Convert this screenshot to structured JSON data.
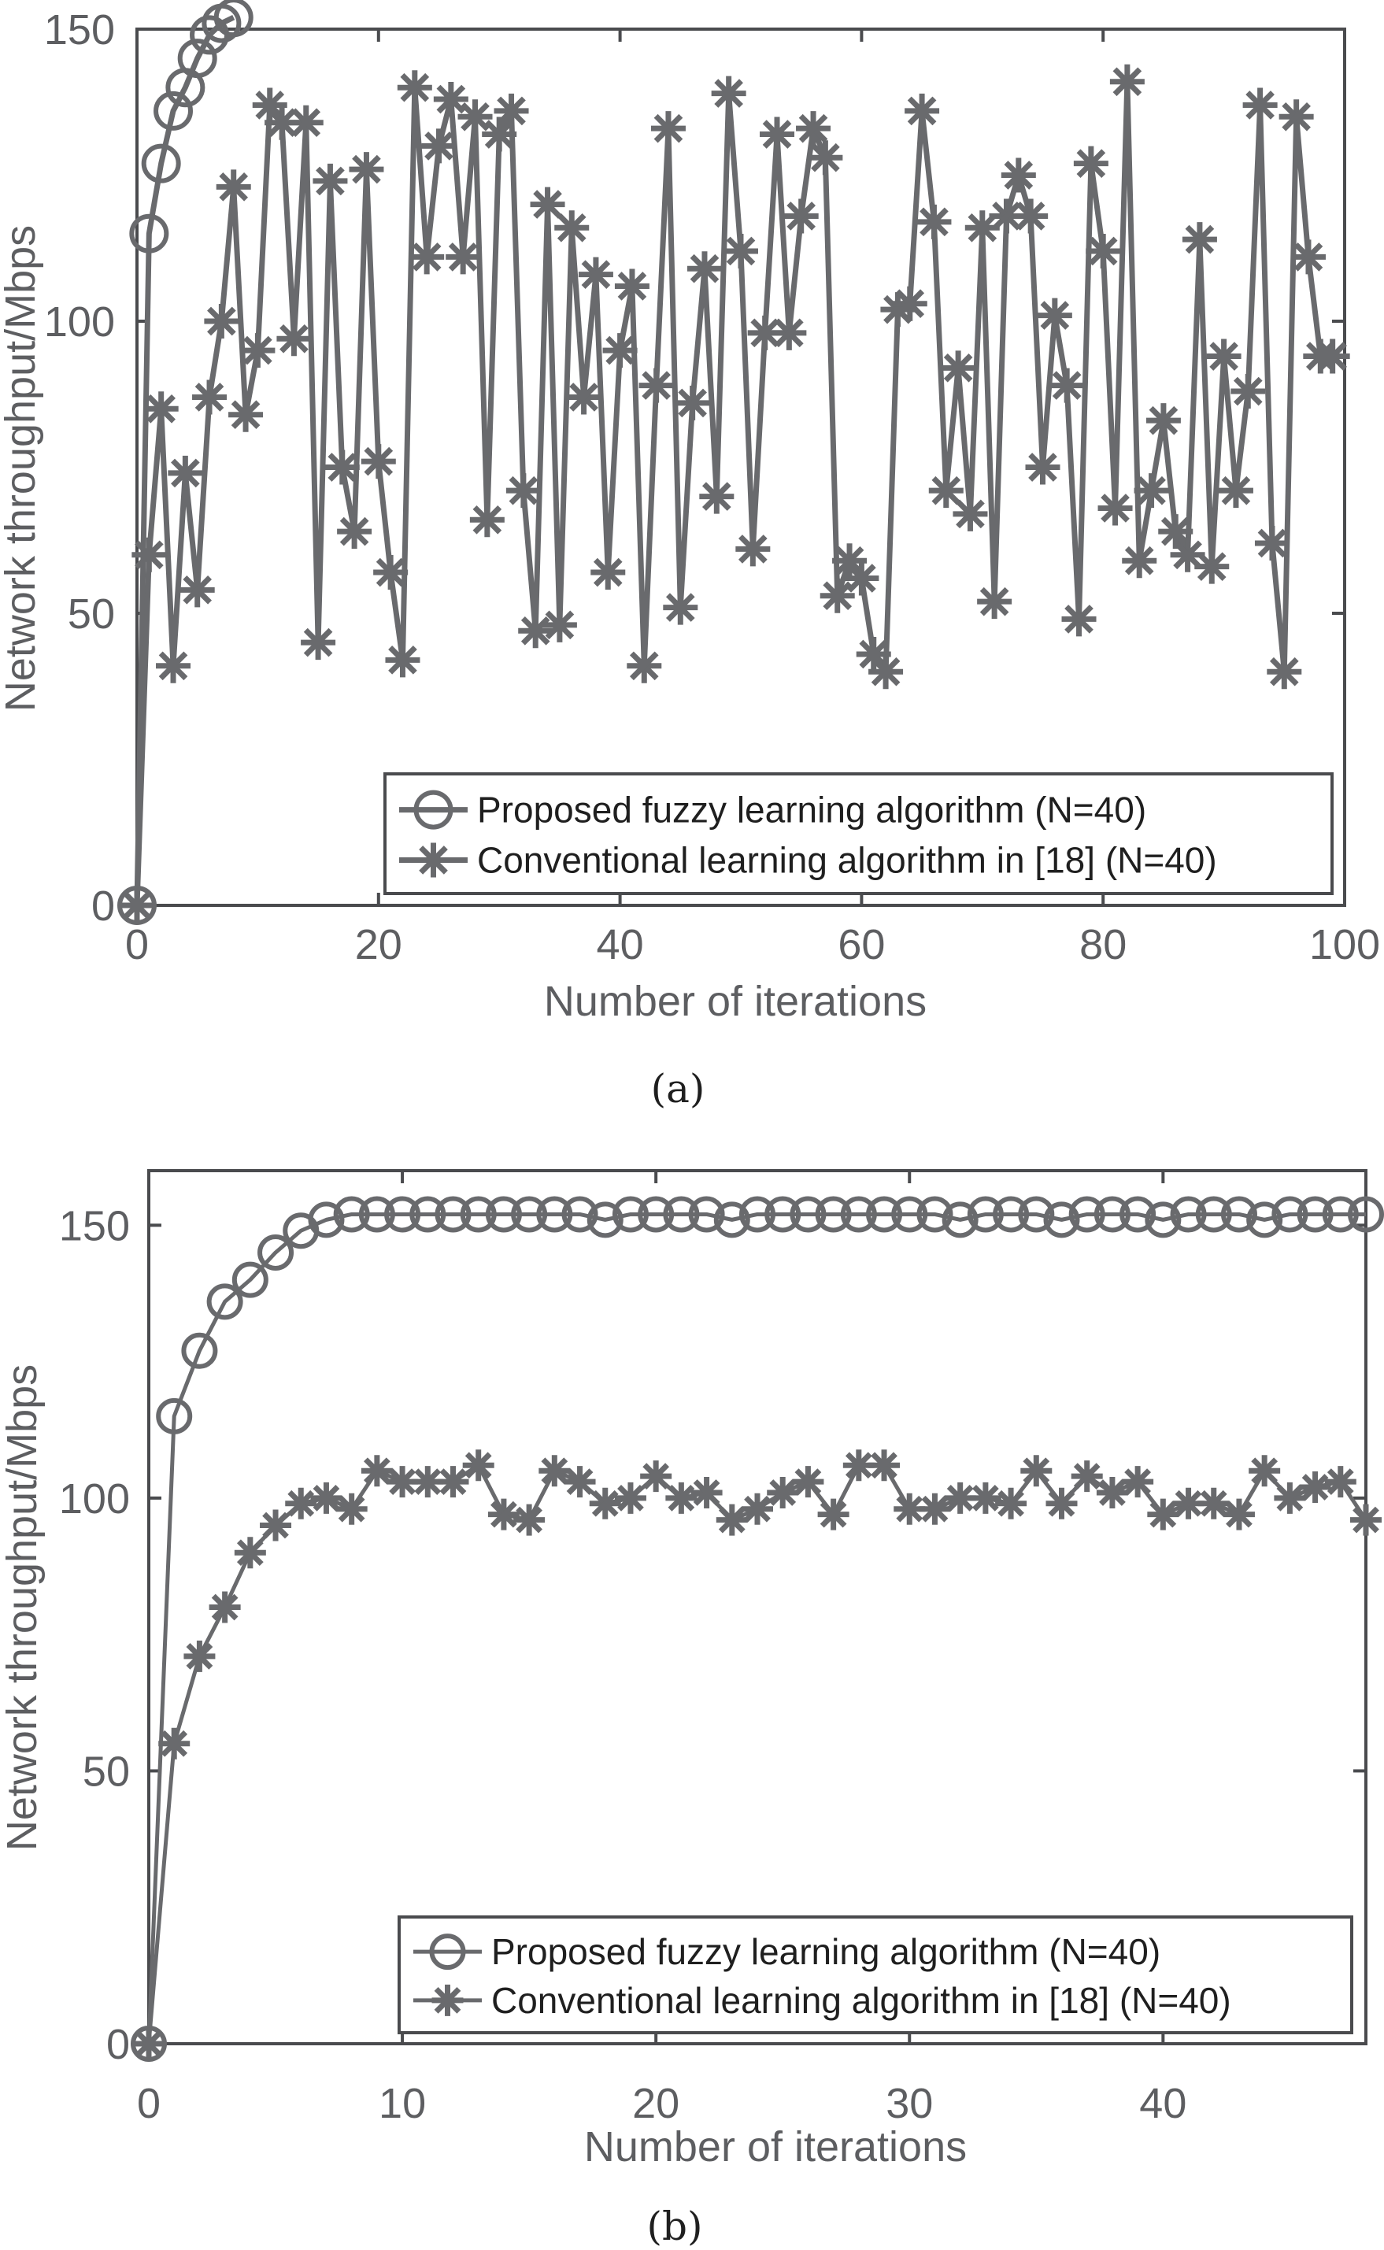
{
  "colors": {
    "series": "#696a6d",
    "axis": "#4a4b4e"
  },
  "chart_data": [
    {
      "type": "line",
      "caption": "(a)",
      "xlabel": "Number of iterations",
      "ylabel": "Network throughput/Mbps",
      "xlim": [
        0,
        100
      ],
      "ylim": [
        0,
        150
      ],
      "xticks": [
        0,
        20,
        40,
        60,
        80,
        100
      ],
      "yticks": [
        0,
        50,
        100,
        150
      ],
      "grid": false,
      "legend_position": "bottom-right",
      "series": [
        {
          "name": "Proposed fuzzy learning algorithm (N=40)",
          "marker": "circle",
          "x": [
            0,
            1,
            2,
            3,
            4,
            5,
            6,
            7,
            8
          ],
          "y": [
            0,
            115,
            127,
            136,
            140,
            145,
            149,
            151,
            152
          ]
        },
        {
          "name": "Conventional learning algorithm in [18] (N=40)",
          "marker": "asterisk",
          "x": [
            0,
            1,
            2,
            3,
            4,
            5,
            6,
            7,
            8,
            9,
            10,
            11,
            12,
            13,
            14,
            15,
            16,
            17,
            18,
            19,
            20,
            21,
            22,
            23,
            24,
            25,
            26,
            27,
            28,
            29,
            30,
            31,
            32,
            33,
            34,
            35,
            36,
            37,
            38,
            39,
            40,
            41,
            42,
            43,
            44,
            45,
            46,
            47,
            48,
            49,
            50,
            51,
            52,
            53,
            54,
            55,
            56,
            57,
            58,
            59,
            60,
            61,
            62,
            63,
            64,
            65,
            66,
            67,
            68,
            69,
            70,
            71,
            72,
            73,
            74,
            75,
            76,
            77,
            78,
            79,
            80,
            81,
            82,
            83,
            84,
            85,
            86,
            87,
            88,
            89,
            90,
            91,
            92,
            93,
            94,
            95,
            96,
            97,
            98,
            99
          ],
          "y": [
            0,
            60,
            85,
            41,
            74,
            54,
            87,
            100,
            123,
            84,
            95,
            137,
            134,
            97,
            134,
            45,
            124,
            75,
            64,
            126,
            76,
            57,
            42,
            140,
            111,
            130,
            138,
            111,
            135,
            66,
            132,
            136,
            71,
            47,
            120,
            48,
            116,
            87,
            108,
            57,
            95,
            106,
            41,
            89,
            133,
            51,
            86,
            109,
            70,
            139,
            112,
            61,
            98,
            132,
            98,
            118,
            133,
            128,
            53,
            59,
            56,
            43,
            40,
            102,
            103,
            136,
            117,
            71,
            92,
            67,
            116,
            52,
            118,
            125,
            118,
            75,
            101,
            89,
            49,
            127,
            112,
            68,
            141,
            59,
            71,
            83,
            64,
            60,
            114,
            58,
            94,
            71,
            88,
            137,
            62,
            40,
            135,
            111,
            94,
            94
          ]
        }
      ]
    },
    {
      "type": "line",
      "caption": "(b)",
      "xlabel": "Number of iterations",
      "ylabel": "Network throughput/Mbps",
      "xlim": [
        0,
        48
      ],
      "ylim": [
        0,
        160
      ],
      "xticks": [
        0,
        10,
        20,
        30,
        40
      ],
      "yticks": [
        0,
        50,
        100,
        150
      ],
      "grid": false,
      "legend_position": "bottom-right",
      "series": [
        {
          "name": "Proposed fuzzy learning algorithm (N=40)",
          "marker": "circle",
          "x": [
            0,
            1,
            2,
            3,
            4,
            5,
            6,
            7,
            8,
            9,
            10,
            11,
            12,
            13,
            14,
            15,
            16,
            17,
            18,
            19,
            20,
            21,
            22,
            23,
            24,
            25,
            26,
            27,
            28,
            29,
            30,
            31,
            32,
            33,
            34,
            35,
            36,
            37,
            38,
            39,
            40,
            41,
            42,
            43,
            44,
            45,
            46,
            47,
            48
          ],
          "y": [
            0,
            115,
            127,
            136,
            140,
            145,
            149,
            151,
            152,
            152,
            152,
            152,
            152,
            152,
            152,
            152,
            152,
            152,
            151,
            152,
            152,
            152,
            152,
            151,
            152,
            152,
            152,
            152,
            152,
            152,
            152,
            152,
            151,
            152,
            152,
            152,
            151,
            152,
            152,
            152,
            151,
            152,
            152,
            152,
            151,
            152,
            152,
            152,
            152
          ]
        },
        {
          "name": "Conventional learning algorithm in [18] (N=40)",
          "marker": "asterisk",
          "x": [
            0,
            1,
            2,
            3,
            4,
            5,
            6,
            7,
            8,
            9,
            10,
            11,
            12,
            13,
            14,
            15,
            16,
            17,
            18,
            19,
            20,
            21,
            22,
            23,
            24,
            25,
            26,
            27,
            28,
            29,
            30,
            31,
            32,
            33,
            34,
            35,
            36,
            37,
            38,
            39,
            40,
            41,
            42,
            43,
            44,
            45,
            46,
            47,
            48
          ],
          "y": [
            0,
            55,
            71,
            80,
            90,
            95,
            99,
            100,
            98,
            105,
            103,
            103,
            103,
            106,
            97,
            96,
            105,
            103,
            99,
            100,
            104,
            100,
            101,
            96,
            98,
            101,
            103,
            97,
            106,
            106,
            98,
            98,
            100,
            100,
            99,
            105,
            99,
            104,
            101,
            103,
            97,
            99,
            99,
            97,
            105,
            100,
            102,
            103,
            96
          ]
        }
      ]
    }
  ]
}
